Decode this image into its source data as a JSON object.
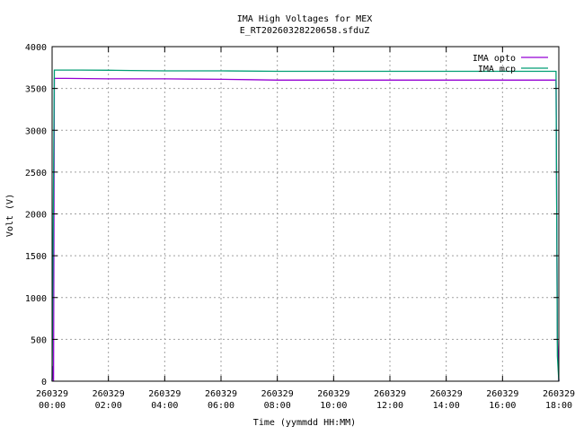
{
  "chart_data": {
    "type": "line",
    "title": "IMA High Voltages for MEX",
    "subtitle": "E_RT20260328220658.sfduZ",
    "xlabel": "Time (yymmdd HH:MM)",
    "ylabel": "Volt (V)",
    "xlim": [
      "260329 00:00",
      "260329 18:00"
    ],
    "ylim": [
      0,
      4000
    ],
    "x_ticks": [
      {
        "date": "260329",
        "time": "00:00",
        "hours": 0
      },
      {
        "date": "260329",
        "time": "02:00",
        "hours": 2
      },
      {
        "date": "260329",
        "time": "04:00",
        "hours": 4
      },
      {
        "date": "260329",
        "time": "06:00",
        "hours": 6
      },
      {
        "date": "260329",
        "time": "08:00",
        "hours": 8
      },
      {
        "date": "260329",
        "time": "10:00",
        "hours": 10
      },
      {
        "date": "260329",
        "time": "12:00",
        "hours": 12
      },
      {
        "date": "260329",
        "time": "14:00",
        "hours": 14
      },
      {
        "date": "260329",
        "time": "16:00",
        "hours": 16
      },
      {
        "date": "260329",
        "time": "18:00",
        "hours": 18
      }
    ],
    "y_ticks": [
      0,
      500,
      1000,
      1500,
      2000,
      2500,
      3000,
      3500,
      4000
    ],
    "grid": true,
    "legend_position": "top-right",
    "series": [
      {
        "name": "IMA opto",
        "color": "#9400d3",
        "points": [
          [
            0.0,
            0
          ],
          [
            0.02,
            180
          ],
          [
            0.05,
            0
          ],
          [
            0.08,
            3620
          ],
          [
            0.5,
            3620
          ],
          [
            2,
            3615
          ],
          [
            4,
            3615
          ],
          [
            5,
            3612
          ],
          [
            6,
            3610
          ],
          [
            7,
            3605
          ],
          [
            8,
            3600
          ],
          [
            10,
            3600
          ],
          [
            12,
            3600
          ],
          [
            14,
            3600
          ],
          [
            16,
            3600
          ],
          [
            17.9,
            3600
          ],
          [
            17.95,
            500
          ],
          [
            18.0,
            0
          ]
        ]
      },
      {
        "name": "IMA mcp",
        "color": "#009e73",
        "points": [
          [
            0.0,
            0
          ],
          [
            0.08,
            3720
          ],
          [
            1,
            3720
          ],
          [
            2,
            3718
          ],
          [
            2.8,
            3715
          ],
          [
            4,
            3710
          ],
          [
            6,
            3710
          ],
          [
            8,
            3705
          ],
          [
            10,
            3705
          ],
          [
            12,
            3705
          ],
          [
            14,
            3705
          ],
          [
            16,
            3705
          ],
          [
            17.9,
            3705
          ],
          [
            17.95,
            300
          ],
          [
            18.0,
            0
          ]
        ]
      }
    ]
  }
}
